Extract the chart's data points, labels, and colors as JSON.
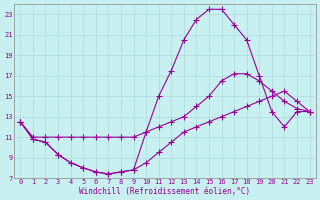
{
  "xlabel": "Windchill (Refroidissement éolien,°C)",
  "bg_color": "#c8f0f0",
  "grid_color": "#b0dede",
  "line_color": "#990099",
  "xlim": [
    -0.5,
    23.5
  ],
  "ylim": [
    7,
    24
  ],
  "xticks": [
    0,
    1,
    2,
    3,
    4,
    5,
    6,
    7,
    8,
    9,
    10,
    11,
    12,
    13,
    14,
    15,
    16,
    17,
    18,
    19,
    20,
    21,
    22,
    23
  ],
  "yticks": [
    7,
    9,
    11,
    13,
    15,
    17,
    19,
    21,
    23
  ],
  "line1_x": [
    0,
    1,
    2,
    3,
    4,
    5,
    6,
    7,
    8,
    9,
    10,
    11,
    12,
    13,
    14,
    15,
    16,
    17,
    18,
    19,
    20,
    21,
    22,
    23
  ],
  "line1_y": [
    12.5,
    10.8,
    10.5,
    9.3,
    8.5,
    8.0,
    7.6,
    7.4,
    7.6,
    7.8,
    8.5,
    9.5,
    10.5,
    11.5,
    12.0,
    12.5,
    13.0,
    13.5,
    14.0,
    14.5,
    15.0,
    15.5,
    14.5,
    13.5
  ],
  "line2_x": [
    0,
    1,
    2,
    3,
    4,
    5,
    6,
    7,
    8,
    9,
    10,
    11,
    12,
    13,
    14,
    15,
    16,
    17,
    18,
    19,
    20,
    21,
    22,
    23
  ],
  "line2_y": [
    12.5,
    10.8,
    10.5,
    9.3,
    8.5,
    8.0,
    7.6,
    7.4,
    7.6,
    7.8,
    11.5,
    15.0,
    17.5,
    20.5,
    22.5,
    23.5,
    23.5,
    22.0,
    20.5,
    17.0,
    13.5,
    12.0,
    13.5,
    13.5
  ],
  "line3_x": [
    0,
    1,
    2,
    3,
    4,
    5,
    6,
    7,
    8,
    9,
    10,
    11,
    12,
    13,
    14,
    15,
    16,
    17,
    18,
    19,
    20,
    21,
    22,
    23
  ],
  "line3_y": [
    12.5,
    11.0,
    11.0,
    11.0,
    11.0,
    11.0,
    11.0,
    11.0,
    11.0,
    11.0,
    11.5,
    12.0,
    12.5,
    13.0,
    14.0,
    15.0,
    16.5,
    17.2,
    17.2,
    16.5,
    15.5,
    14.5,
    13.8,
    13.5
  ]
}
